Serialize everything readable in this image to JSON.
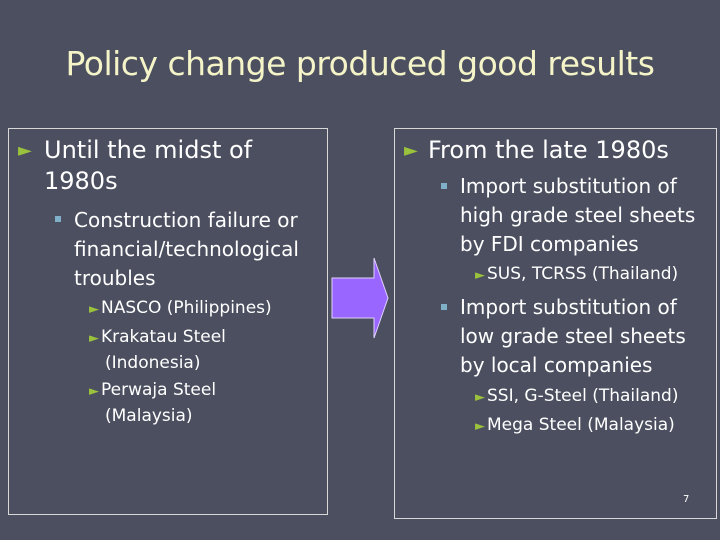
{
  "title": "Policy change produced good results",
  "left": {
    "heading": "Until the midst of 1980s",
    "sub": "Construction failure or financial/technological troubles",
    "items": [
      "NASCO (Philippines)",
      "Krakatau Steel (Indonesia)",
      "Perwaja Steel (Malaysia)"
    ]
  },
  "right": {
    "heading": "From the late 1980s",
    "sub1": "Import substitution of high grade steel sheets by FDI companies",
    "sub1_items": [
      "SUS, TCRSS (Thailand)"
    ],
    "sub2": "Import substitution of low grade steel sheets by local companies",
    "sub2_items": [
      "SSI, G-Steel (Thailand)",
      "Mega Steel (Malaysia)"
    ]
  },
  "page_number": "7",
  "colors": {
    "arrow": "#9966ff",
    "bullet": "#9ac23c",
    "title": "#f4f4c8"
  }
}
